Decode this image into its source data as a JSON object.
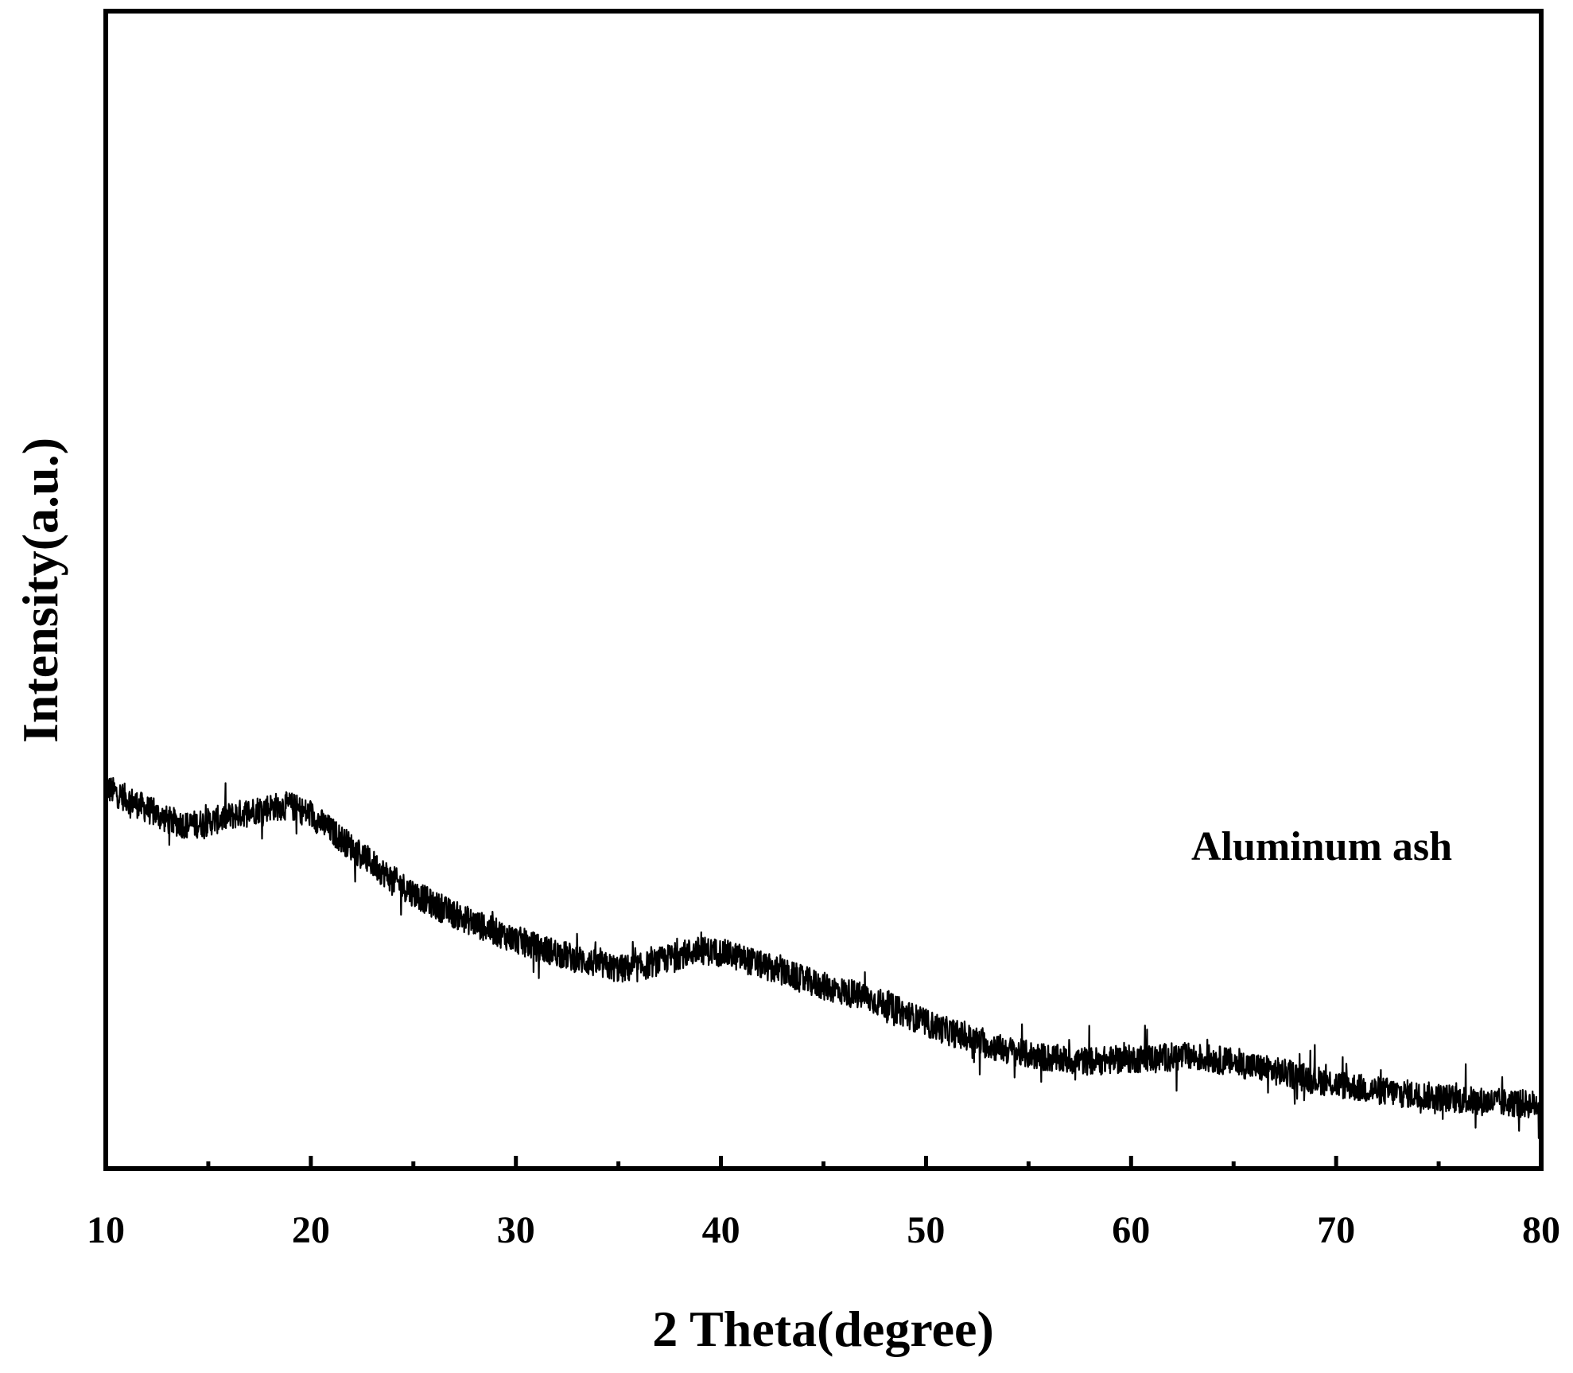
{
  "chart_data": {
    "type": "line",
    "xlabel": "2 Theta(degree)",
    "ylabel": "Intensity(a.u.)",
    "xlim": [
      10,
      80
    ],
    "ylim": [
      0,
      100
    ],
    "x_ticks": [
      10,
      20,
      30,
      40,
      50,
      60,
      70,
      80
    ],
    "x_tick_labels": [
      "10",
      "20",
      "30",
      "40",
      "50",
      "60",
      "70",
      "80"
    ],
    "y_ticks_shown": false,
    "grid": false,
    "line_color": "#000000",
    "annotation": "Aluminum ash",
    "series": [
      {
        "x": [
          10,
          11,
          12,
          13,
          14,
          15,
          16,
          17,
          18,
          19,
          20,
          21,
          22,
          23,
          24,
          25,
          26,
          27,
          28,
          29,
          30,
          31,
          32,
          33,
          34,
          35,
          36,
          37,
          38,
          39,
          40,
          41,
          42,
          43,
          44,
          45,
          46,
          47,
          48,
          49,
          50,
          51,
          52,
          53,
          54,
          55,
          56,
          57,
          58,
          59,
          60,
          61,
          62,
          63,
          64,
          65,
          66,
          67,
          68,
          69,
          70,
          71,
          72,
          73,
          74,
          75,
          76,
          77,
          78,
          79,
          80
        ],
        "values": [
          29,
          28,
          27,
          26,
          25.5,
          25.8,
          26.3,
          26.8,
          27.2,
          27.3,
          26.5,
          25,
          23.5,
          22,
          20.5,
          19.3,
          18.2,
          17.3,
          16.5,
          15.7,
          15,
          14.3,
          13.8,
          13.2,
          12.7,
          12.3,
          12.4,
          13,
          13.6,
          14,
          13.8,
          13.3,
          12.6,
          12,
          11.3,
          10.7,
          10.2,
          9.7,
          9,
          8.2,
          7.3,
          6.6,
          6,
          5.3,
          4.8,
          4.4,
          4.1,
          3.9,
          3.8,
          3.9,
          4,
          4.1,
          4.2,
          4.2,
          4,
          3.7,
          3.3,
          2.9,
          2.5,
          2.1,
          1.7,
          1.4,
          1.1,
          0.9,
          0.7,
          0.5,
          0.3,
          0.1,
          0,
          -0.1,
          -0.2
        ]
      }
    ]
  }
}
